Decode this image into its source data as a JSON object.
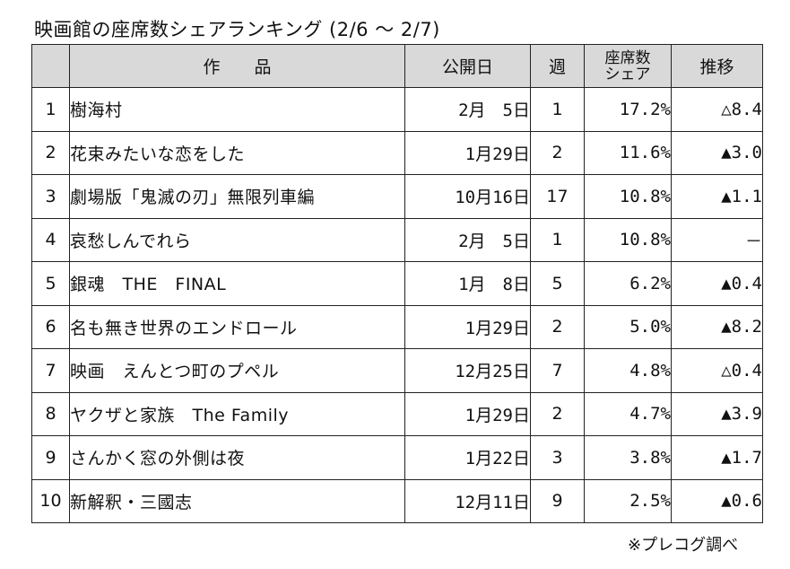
{
  "title": "映画館の座席数シェアランキング (2/6 ～ 2/7)",
  "table": {
    "headers": {
      "rank": "",
      "work": "作　　品",
      "release": "公開日",
      "week": "週",
      "share": "座席数\nシェア",
      "trend": "推移"
    },
    "rows": [
      {
        "rank": "1",
        "title": "樹海村",
        "release": "2月　5日",
        "week": "1",
        "share": "17.2%",
        "trend": "△8.4"
      },
      {
        "rank": "2",
        "title": "花束みたいな恋をした",
        "release": "1月29日",
        "week": "2",
        "share": "11.6%",
        "trend": "▲3.0"
      },
      {
        "rank": "3",
        "title": "劇場版「鬼滅の刃」無限列車編",
        "release": "10月16日",
        "week": "17",
        "share": "10.8%",
        "trend": "▲1.1"
      },
      {
        "rank": "4",
        "title": "哀愁しんでれら",
        "release": "2月　5日",
        "week": "1",
        "share": "10.8%",
        "trend": "－"
      },
      {
        "rank": "5",
        "title": "銀魂　THE　FINAL",
        "release": "1月　8日",
        "week": "5",
        "share": "6.2%",
        "trend": "▲0.4"
      },
      {
        "rank": "6",
        "title": "名も無き世界のエンドロール",
        "release": "1月29日",
        "week": "2",
        "share": "5.0%",
        "trend": "▲8.2"
      },
      {
        "rank": "7",
        "title": "映画　えんとつ町のプペル",
        "release": "12月25日",
        "week": "7",
        "share": "4.8%",
        "trend": "△0.4"
      },
      {
        "rank": "8",
        "title": "ヤクザと家族　The Family",
        "release": "1月29日",
        "week": "2",
        "share": "4.7%",
        "trend": "▲3.9"
      },
      {
        "rank": "9",
        "title": "さんかく窓の外側は夜",
        "release": "1月22日",
        "week": "3",
        "share": "3.8%",
        "trend": "▲1.7"
      },
      {
        "rank": "10",
        "title": "新解釈・三國志",
        "release": "12月11日",
        "week": "9",
        "share": "2.5%",
        "trend": "▲0.6"
      }
    ]
  },
  "source": "※プレコグ調べ"
}
